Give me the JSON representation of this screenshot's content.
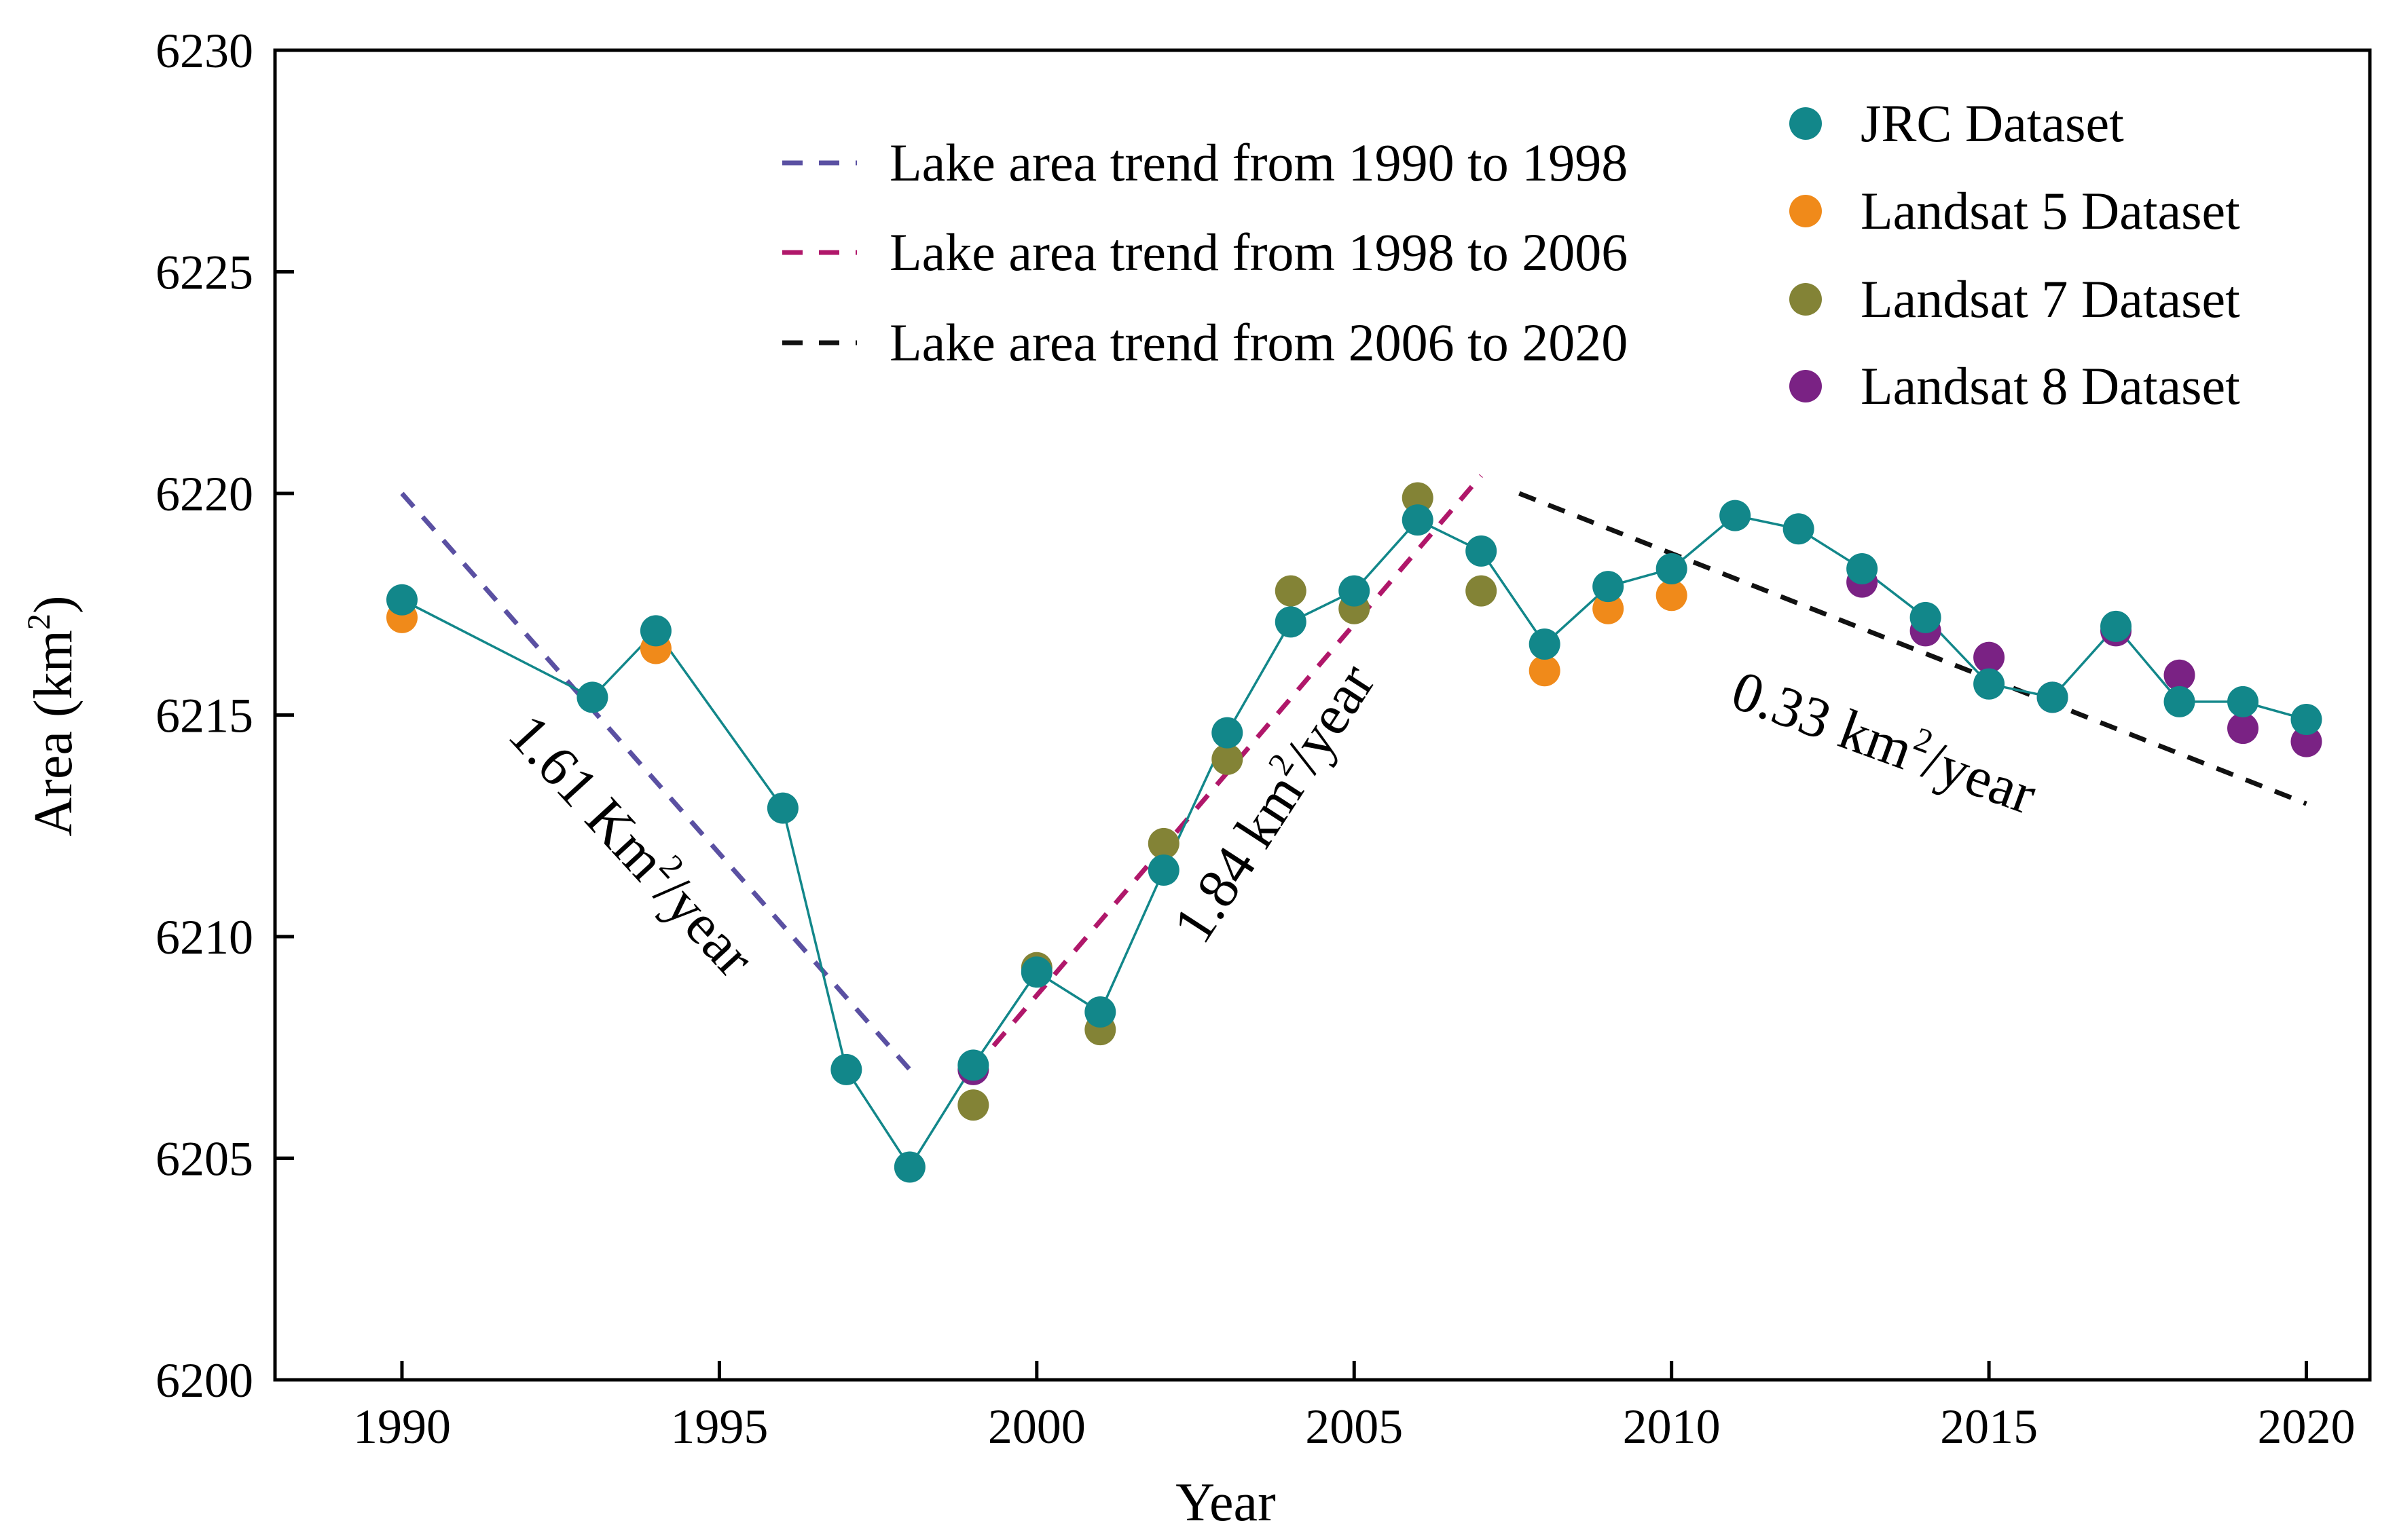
{
  "chart_data": {
    "type": "scatter",
    "title": "",
    "xlabel": "Year",
    "ylabel": "Area (km",
    "ylabel_sup": "2",
    "ylabel_close": ")",
    "xlim": [
      1988,
      2021
    ],
    "ylim": [
      6200,
      6230
    ],
    "xticks": [
      1990,
      1995,
      2000,
      2005,
      2010,
      2015,
      2020
    ],
    "yticks": [
      6200,
      6205,
      6210,
      6215,
      6220,
      6225,
      6230
    ],
    "series": [
      {
        "name": "JRC Dataset",
        "color": "#12878a",
        "connected": true,
        "points": [
          {
            "x": 1990,
            "y": 6217.6
          },
          {
            "x": 1993,
            "y": 6215.4
          },
          {
            "x": 1994,
            "y": 6216.9
          },
          {
            "x": 1996,
            "y": 6212.9
          },
          {
            "x": 1997,
            "y": 6207.0
          },
          {
            "x": 1998,
            "y": 6204.8
          },
          {
            "x": 1999,
            "y": 6207.1
          },
          {
            "x": 2000,
            "y": 6209.2
          },
          {
            "x": 2001,
            "y": 6208.3
          },
          {
            "x": 2002,
            "y": 6211.5
          },
          {
            "x": 2003,
            "y": 6214.6
          },
          {
            "x": 2004,
            "y": 6217.1
          },
          {
            "x": 2005,
            "y": 6217.8
          },
          {
            "x": 2006,
            "y": 6219.4
          },
          {
            "x": 2007,
            "y": 6218.7
          },
          {
            "x": 2008,
            "y": 6216.6
          },
          {
            "x": 2009,
            "y": 6217.9
          },
          {
            "x": 2010,
            "y": 6218.3
          },
          {
            "x": 2011,
            "y": 6219.5
          },
          {
            "x": 2012,
            "y": 6219.2
          },
          {
            "x": 2013,
            "y": 6218.3
          },
          {
            "x": 2014,
            "y": 6217.2
          },
          {
            "x": 2015,
            "y": 6215.7
          },
          {
            "x": 2016,
            "y": 6215.4
          },
          {
            "x": 2017,
            "y": 6217.0
          },
          {
            "x": 2018,
            "y": 6215.3
          },
          {
            "x": 2019,
            "y": 6215.3
          },
          {
            "x": 2020,
            "y": 6214.9
          }
        ]
      },
      {
        "name": "Landsat 5 Dataset",
        "color": "#f08a1a",
        "points": [
          {
            "x": 1990,
            "y": 6217.2
          },
          {
            "x": 1994,
            "y": 6216.5
          },
          {
            "x": 2008,
            "y": 6216.0
          },
          {
            "x": 2009,
            "y": 6217.4
          },
          {
            "x": 2010,
            "y": 6217.7
          }
        ]
      },
      {
        "name": "Landsat 7 Dataset",
        "color": "#838336",
        "points": [
          {
            "x": 1999,
            "y": 6206.2
          },
          {
            "x": 2000,
            "y": 6209.3
          },
          {
            "x": 2001,
            "y": 6207.9
          },
          {
            "x": 2002,
            "y": 6212.1
          },
          {
            "x": 2003,
            "y": 6214.0
          },
          {
            "x": 2004,
            "y": 6217.8
          },
          {
            "x": 2005,
            "y": 6217.4
          },
          {
            "x": 2006,
            "y": 6219.9
          },
          {
            "x": 2007,
            "y": 6217.8
          }
        ]
      },
      {
        "name": "Landsat 8 Dataset",
        "color": "#7a2284",
        "points": [
          {
            "x": 1999,
            "y": 6207.0
          },
          {
            "x": 2013,
            "y": 6218.0
          },
          {
            "x": 2014,
            "y": 6216.9
          },
          {
            "x": 2015,
            "y": 6216.3
          },
          {
            "x": 2016,
            "y": 6215.4
          },
          {
            "x": 2017,
            "y": 6216.9
          },
          {
            "x": 2018,
            "y": 6215.9
          },
          {
            "x": 2019,
            "y": 6214.7
          },
          {
            "x": 2020,
            "y": 6214.4
          }
        ]
      }
    ],
    "trend_lines": [
      {
        "name": "Lake area trend from 1990 to 1998",
        "color": "#5a50a2",
        "x": [
          1990,
          1998
        ],
        "y": [
          6220.0,
          6207.0
        ],
        "label_text": "1.61 Km",
        "label_sup": "2",
        "label_suffix": "/year"
      },
      {
        "name": "Lake area trend from 1998 to 2006",
        "color": "#b0176a",
        "x": [
          1999,
          2007
        ],
        "y": [
          6207.0,
          6220.4
        ],
        "label_text": "1.84 km",
        "label_sup": "2",
        "label_suffix": "/year"
      },
      {
        "name": "Lake area trend from 2006 to 2020",
        "color": "#111111",
        "x": [
          2007.6,
          2020
        ],
        "y": [
          6220.0,
          6213.0
        ],
        "label_text": "0.33 km",
        "label_sup": "2",
        "label_suffix": "/year"
      }
    ]
  }
}
